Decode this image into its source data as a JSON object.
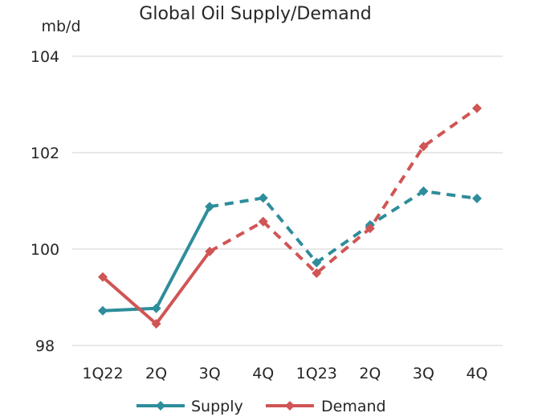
{
  "chart_data": {
    "type": "line",
    "title": "Global Oil Supply/Demand",
    "ylabel": "mb/d",
    "xlabel": "",
    "categories": [
      "1Q22",
      "2Q",
      "3Q",
      "4Q",
      "1Q23",
      "2Q",
      "3Q",
      "4Q"
    ],
    "ylim": [
      98,
      104
    ],
    "yticks": [
      98,
      100,
      102,
      104
    ],
    "grid": true,
    "legend_position": "bottom",
    "forecast_start_index": 3,
    "series": [
      {
        "name": "Supply",
        "color": "#2e8d9b",
        "marker": "diamond",
        "values": [
          98.72,
          98.77,
          100.88,
          101.06,
          99.72,
          100.5,
          101.2,
          101.05
        ]
      },
      {
        "name": "Demand",
        "color": "#d05555",
        "marker": "diamond",
        "values": [
          99.42,
          98.45,
          99.95,
          100.57,
          99.5,
          100.43,
          102.13,
          102.92
        ]
      }
    ]
  }
}
